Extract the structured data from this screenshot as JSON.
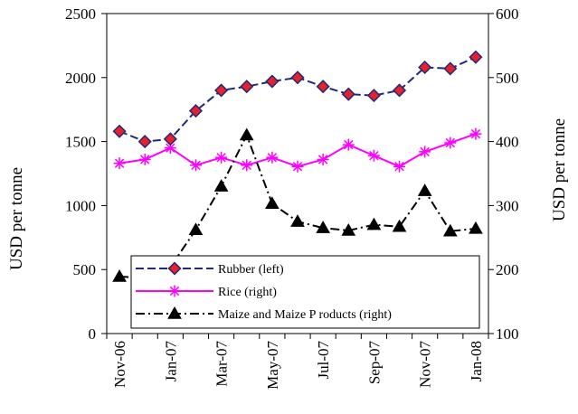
{
  "chart_data": {
    "type": "line",
    "categories": [
      "Nov-06",
      "Dec-06",
      "Jan-07",
      "Feb-07",
      "Mar-07",
      "Apr-07",
      "May-07",
      "Jun-07",
      "Jul-07",
      "Aug-07",
      "Sep-07",
      "Oct-07",
      "Nov-07",
      "Dec-07",
      "Jan-08"
    ],
    "x_tick_labels": [
      "Nov-06",
      "Jan-07",
      "Mar-07",
      "May-07",
      "Jul-07",
      "Sep-07",
      "Nov-07",
      "Jan-08"
    ],
    "ylabel_left": "USD per tonne",
    "ylabel_right": "USD per tonne",
    "ylim_left": [
      0,
      2500
    ],
    "ylim_right": [
      100,
      600
    ],
    "yticks_left": [
      "0",
      "500",
      "1000",
      "1500",
      "2000",
      "2500"
    ],
    "yticks_right": [
      "100",
      "200",
      "300",
      "400",
      "500",
      "600"
    ],
    "grid": false,
    "legend_position": "bottom-left",
    "series": [
      {
        "name": "Rubber (left)",
        "axis": "left",
        "color": "#1f2a7a",
        "marker": "diamond",
        "marker_fill": "#e8202a",
        "line_style": "dashed",
        "values": [
          1580,
          1500,
          1520,
          1740,
          1900,
          1930,
          1970,
          2000,
          1930,
          1870,
          1860,
          1900,
          2080,
          2070,
          2160
        ]
      },
      {
        "name": "Rice (right)",
        "axis": "right",
        "color": "#ff00ff",
        "marker": "asterisk",
        "line_style": "solid",
        "values": [
          366,
          372,
          390,
          363,
          375,
          363,
          375,
          361,
          372,
          395,
          378,
          361,
          384,
          398,
          412
        ]
      },
      {
        "name": "Maize and Maize P roducts (right)",
        "axis": "right",
        "color": "#000000",
        "marker": "triangle",
        "line_style": "dashdot",
        "values": [
          189,
          187,
          204,
          262,
          330,
          410,
          303,
          275,
          265,
          261,
          270,
          267,
          323,
          260,
          264
        ]
      }
    ]
  }
}
